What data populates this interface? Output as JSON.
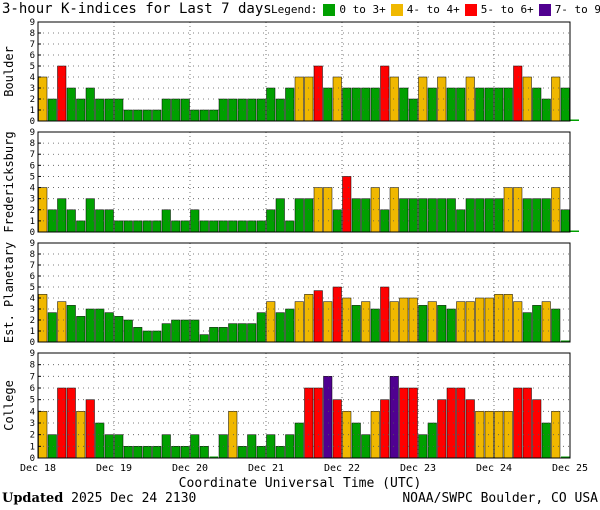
{
  "header": {
    "title": "3-hour K-indices for Last 7 days",
    "legend_label": "Legend:",
    "legend": [
      {
        "label": "0 to 3+",
        "color": "#00a000"
      },
      {
        "label": "4- to 4+",
        "color": "#f0b800"
      },
      {
        "label": "5- to 6+",
        "color": "#ff0000"
      },
      {
        "label": "7- to 9",
        "color": "#500090"
      }
    ]
  },
  "footer": {
    "xlabel": "Coordinate Universal Time (UTC)",
    "updated_label": "Updated",
    "updated_value": "2025 Dec 24 2130",
    "credit": "NOAA/SWPC Boulder, CO USA"
  },
  "chart_data": {
    "type": "bar",
    "x_tick_labels": [
      "Dec 18",
      "Dec 19",
      "Dec 20",
      "Dec 21",
      "Dec 22",
      "Dec 23",
      "Dec 24",
      "Dec 25"
    ],
    "ylim": [
      0,
      9
    ],
    "y_ticks": [
      0,
      1,
      2,
      3,
      4,
      5,
      6,
      7,
      8,
      9
    ],
    "grid": "dotted",
    "intervals_per_day": 8,
    "color_scale": [
      {
        "range": "0 to 3+",
        "color": "#00a000"
      },
      {
        "range": "4- to 4+",
        "color": "#f0b800"
      },
      {
        "range": "5- to 6+",
        "color": "#ff0000"
      },
      {
        "range": "7- to 9",
        "color": "#500090"
      }
    ],
    "series": [
      {
        "name": "Boulder",
        "values": [
          4,
          2,
          5,
          3,
          2,
          3,
          2,
          2,
          2,
          1,
          1,
          1,
          1,
          2,
          2,
          2,
          1,
          1,
          1,
          2,
          2,
          2,
          2,
          2,
          3,
          2,
          3,
          4,
          4,
          5,
          3,
          4,
          3,
          3,
          3,
          3,
          5,
          4,
          3,
          2,
          4,
          3,
          4,
          3,
          3,
          4,
          3,
          3,
          3,
          3,
          5,
          4,
          3,
          2,
          4,
          3,
          0
        ]
      },
      {
        "name": "Fredericksburg",
        "values": [
          4,
          2,
          3,
          2,
          1,
          3,
          2,
          2,
          1,
          1,
          1,
          1,
          1,
          2,
          1,
          1,
          2,
          1,
          1,
          1,
          1,
          1,
          1,
          1,
          2,
          3,
          1,
          3,
          3,
          4,
          4,
          2,
          5,
          3,
          3,
          4,
          2,
          4,
          3,
          3,
          3,
          3,
          3,
          3,
          2,
          3,
          3,
          3,
          3,
          4,
          4,
          3,
          3,
          3,
          4,
          2,
          0
        ]
      },
      {
        "name": "Est. Planetary",
        "values": [
          4.33,
          2.67,
          3.67,
          3.33,
          2.33,
          3,
          3,
          2.67,
          2.33,
          2,
          1.33,
          1,
          1,
          1.67,
          2,
          2,
          2,
          0.67,
          1.33,
          1.33,
          1.67,
          1.67,
          1.67,
          2.67,
          3.67,
          2.67,
          3,
          3.67,
          4.33,
          4.67,
          3.67,
          5,
          4,
          3.33,
          3.67,
          3,
          5,
          3.67,
          4,
          4,
          3.33,
          3.67,
          3.33,
          3,
          3.67,
          3.67,
          4,
          4,
          4.33,
          4.33,
          3.67,
          2.67,
          3.33,
          3.67,
          3,
          0
        ]
      },
      {
        "name": "College",
        "values": [
          4,
          2,
          6,
          6,
          4,
          5,
          3,
          2,
          2,
          1,
          1,
          1,
          1,
          2,
          1,
          1,
          2,
          1,
          0,
          2,
          4,
          1,
          2,
          1,
          2,
          1,
          2,
          3,
          6,
          6,
          7,
          5,
          4,
          3,
          2,
          4,
          5,
          7,
          6,
          6,
          2,
          3,
          5,
          6,
          6,
          5,
          4,
          4,
          4,
          4,
          6,
          6,
          5,
          3,
          4,
          0
        ]
      }
    ]
  }
}
